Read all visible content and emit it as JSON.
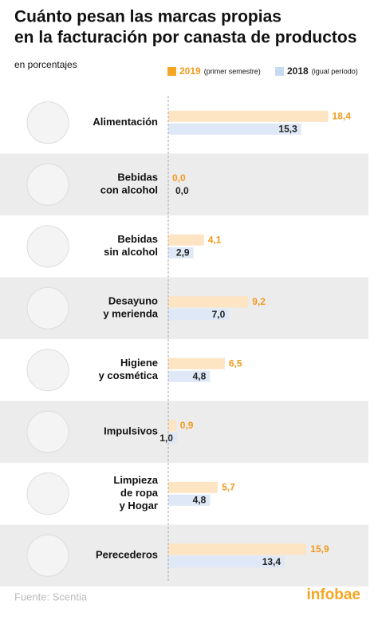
{
  "chart_data": {
    "type": "hbar",
    "title": [
      "Cuánto pesan las marcas propias",
      "en la facturación por canasta de productos"
    ],
    "subtitle": "en porcentajes",
    "source": "Fuente: Scentia",
    "brand": "infobae",
    "categories": [
      [
        "Alimentación"
      ],
      [
        "Bebidas",
        "con alcohol"
      ],
      [
        "Bebidas",
        "sin alcohol"
      ],
      [
        "Desayuno",
        "y merienda"
      ],
      [
        "Higiene",
        "y cosmética"
      ],
      [
        "Impulsivos"
      ],
      [
        "Limpieza",
        "de ropa",
        "y Hogar"
      ],
      [
        "Perecederos"
      ]
    ],
    "series": [
      {
        "name": "2019",
        "legend_note": "(primer semestre)",
        "color": "#fde4c3",
        "label_color": "#f29a1e",
        "legend_color": "#f5a623",
        "values": [
          18.4,
          0.0,
          4.1,
          9.2,
          6.5,
          0.9,
          5.7,
          15.9
        ],
        "value_labels": [
          "18,4",
          "0,0",
          "4,1",
          "9,2",
          "6,5",
          "0,9",
          "5,7",
          "15,9"
        ]
      },
      {
        "name": "2018",
        "legend_note": "(igual período)",
        "color": "#dfe8f6",
        "label_color": "#222222",
        "legend_color": "#c6dbf3",
        "values": [
          15.3,
          0.0,
          2.9,
          7.0,
          4.8,
          1.0,
          4.8,
          13.4
        ],
        "value_labels": [
          "15,3",
          "0,0",
          "2,9",
          "7,0",
          "4,8",
          "1,0",
          "4,8",
          "13,4"
        ]
      }
    ]
  }
}
